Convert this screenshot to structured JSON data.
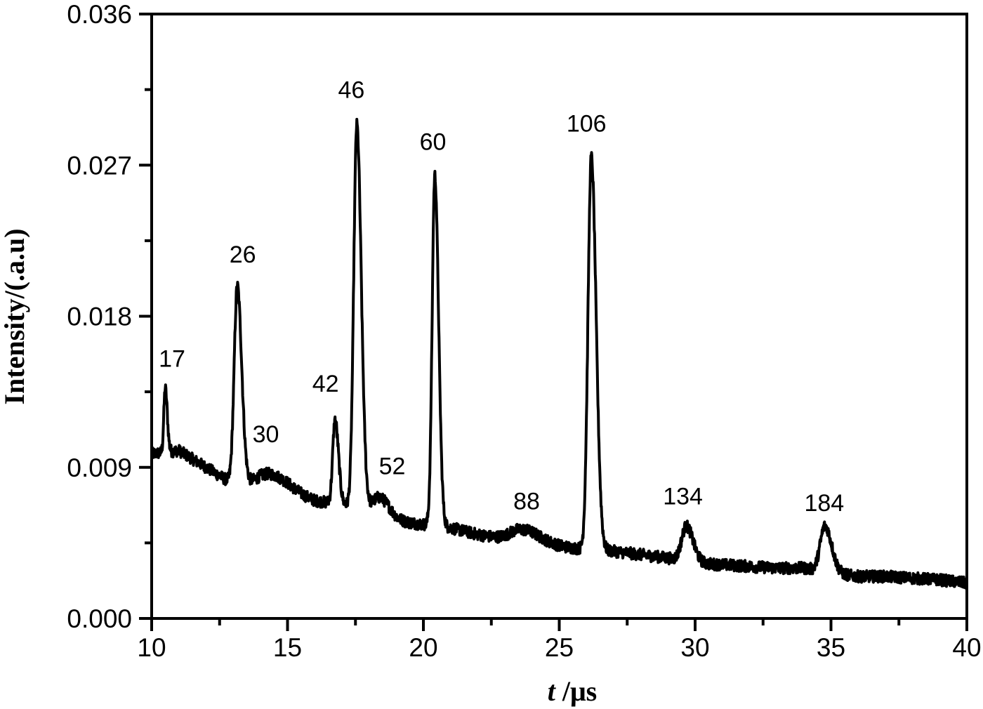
{
  "chart_data": {
    "type": "line",
    "title": "",
    "xlabel": "t /μs",
    "xlabel_italic_part": "t",
    "xlabel_rest": " /μs",
    "ylabel": "Intensity/(.a.u)",
    "xlim": [
      10,
      40
    ],
    "ylim": [
      0.0,
      0.036
    ],
    "grid": false,
    "legend": null,
    "frame": "box",
    "x_ticks": [
      10,
      15,
      20,
      25,
      30,
      35,
      40
    ],
    "x_tick_labels": [
      "10",
      "15",
      "20",
      "25",
      "30",
      "35",
      "40"
    ],
    "x_minor_ticks": [
      12.5,
      17.5,
      22.5,
      27.5,
      32.5,
      37.5
    ],
    "y_ticks": [
      0.0,
      0.009,
      0.018,
      0.027,
      0.036
    ],
    "y_tick_labels": [
      "0.000",
      "0.009",
      "0.018",
      "0.027",
      "0.036"
    ],
    "y_minor_ticks": [
      0.0045,
      0.0135,
      0.0225,
      0.0315
    ],
    "line_color": "#000000",
    "baseline": {
      "description": "noisy decaying background",
      "points": [
        [
          10,
          0.0098
        ],
        [
          11,
          0.01
        ],
        [
          12,
          0.009
        ],
        [
          13,
          0.008
        ],
        [
          14,
          0.008
        ],
        [
          15,
          0.0076
        ],
        [
          16,
          0.007
        ],
        [
          17,
          0.0068
        ],
        [
          18,
          0.0064
        ],
        [
          19,
          0.0058
        ],
        [
          20,
          0.0056
        ],
        [
          21,
          0.0054
        ],
        [
          22,
          0.005
        ],
        [
          23,
          0.0047
        ],
        [
          24,
          0.0046
        ],
        [
          25,
          0.0043
        ],
        [
          26,
          0.0041
        ],
        [
          27,
          0.004
        ],
        [
          28,
          0.0038
        ],
        [
          29,
          0.0036
        ],
        [
          30,
          0.0033
        ],
        [
          31,
          0.0032
        ],
        [
          32,
          0.0031
        ],
        [
          33,
          0.003
        ],
        [
          34,
          0.003
        ],
        [
          35,
          0.0027
        ],
        [
          36,
          0.0025
        ],
        [
          37,
          0.0025
        ],
        [
          38,
          0.0024
        ],
        [
          39,
          0.0023
        ],
        [
          40,
          0.0021
        ]
      ],
      "noise_amplitude": 0.00035
    },
    "peaks": [
      {
        "label": "17",
        "t": 10.5,
        "intensity": 0.0137,
        "width": 0.06
      },
      {
        "label": "26",
        "t": 13.15,
        "intensity": 0.0198,
        "width": 0.13
      },
      {
        "label": "30",
        "t": 14.4,
        "intensity": 0.0086,
        "width": 0.5
      },
      {
        "label": "42",
        "t": 16.75,
        "intensity": 0.0118,
        "width": 0.1
      },
      {
        "label": "46",
        "t": 17.55,
        "intensity": 0.0294,
        "width": 0.13
      },
      {
        "label": "52",
        "t": 18.4,
        "intensity": 0.0072,
        "width": 0.3
      },
      {
        "label": "60",
        "t": 20.42,
        "intensity": 0.0264,
        "width": 0.11
      },
      {
        "label": "88",
        "t": 23.6,
        "intensity": 0.0053,
        "width": 0.5
      },
      {
        "label": "106",
        "t": 26.18,
        "intensity": 0.0275,
        "width": 0.14
      },
      {
        "label": "134",
        "t": 29.68,
        "intensity": 0.0055,
        "width": 0.2
      },
      {
        "label": "184",
        "t": 34.78,
        "intensity": 0.0055,
        "width": 0.2
      }
    ],
    "annotations": [
      {
        "text": "17",
        "t": 10.75,
        "y": 0.015
      },
      {
        "text": "26",
        "t": 13.35,
        "y": 0.0212
      },
      {
        "text": "30",
        "t": 14.2,
        "y": 0.0105
      },
      {
        "text": "42",
        "t": 16.4,
        "y": 0.0135
      },
      {
        "text": "46",
        "t": 17.35,
        "y": 0.031
      },
      {
        "text": "52",
        "t": 18.85,
        "y": 0.0086
      },
      {
        "text": "60",
        "t": 20.35,
        "y": 0.0279
      },
      {
        "text": "88",
        "t": 23.8,
        "y": 0.0065
      },
      {
        "text": "106",
        "t": 26.0,
        "y": 0.029
      },
      {
        "text": "134",
        "t": 29.55,
        "y": 0.0068
      },
      {
        "text": "184",
        "t": 34.75,
        "y": 0.0064
      }
    ]
  }
}
